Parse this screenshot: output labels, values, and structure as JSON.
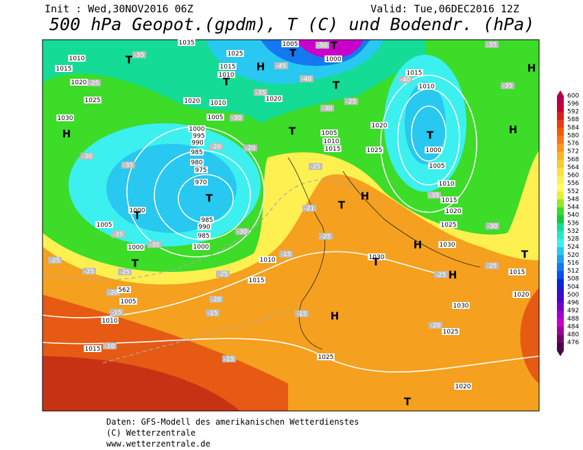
{
  "header": {
    "init": "Init : Wed,30NOV2016 06Z",
    "valid": "Valid: Tue,06DEC2016 12Z",
    "title": "500 hPa Geopot.(gpdm), T (C) und Bodendr. (hPa)"
  },
  "colorbar": {
    "values": [
      600,
      596,
      592,
      588,
      584,
      580,
      576,
      572,
      568,
      564,
      560,
      556,
      552,
      548,
      544,
      540,
      536,
      532,
      528,
      524,
      520,
      516,
      512,
      508,
      504,
      500,
      496,
      492,
      488,
      484,
      480,
      476
    ],
    "colors": [
      "#b4004b",
      "#c80032",
      "#dc1e1e",
      "#e63c14",
      "#f05a0a",
      "#f57814",
      "#f8961e",
      "#fab428",
      "#fcc832",
      "#fde03c",
      "#fef050",
      "#ffff64",
      "#e6f032",
      "#96e628",
      "#3cdc28",
      "#14c83c",
      "#14dc96",
      "#28e6c8",
      "#3cf0f0",
      "#28c8f0",
      "#1ea0f0",
      "#1478f0",
      "#0a50e6",
      "#0028dc",
      "#2814c8",
      "#5000c8",
      "#7800c8",
      "#a000c8",
      "#c800c8",
      "#a0009b",
      "#78006e",
      "#50004b"
    ]
  },
  "map": {
    "isobar_labels": [
      "1035",
      "1025",
      "1005",
      "1000",
      "1010",
      "1015",
      "1020",
      "1025",
      "1030",
      "1015",
      "1010",
      "1020",
      "1010",
      "1005",
      "1000",
      "995",
      "990",
      "985",
      "980",
      "975",
      "970",
      "985",
      "990",
      "985",
      "1000",
      "1000",
      "1005",
      "1000",
      "1020",
      "1005",
      "1010",
      "1015",
      "1020",
      "1025",
      "1015",
      "1010",
      "1000",
      "1005",
      "1010",
      "1015",
      "1020",
      "1025",
      "1030",
      "1030",
      "1010",
      "1015",
      "1005",
      "1010",
      "1015",
      "1025",
      "1030",
      "1025",
      "1020",
      "1020",
      "1015",
      "562"
    ],
    "temp_labels": [
      "-35",
      "-25",
      "-30",
      "-35",
      "-20",
      "-30",
      "-20",
      "-25",
      "-21",
      "-25",
      "-15",
      "-25",
      "-20",
      "-15",
      "-15",
      "-15",
      "-10",
      "-15",
      "-20",
      "-25",
      "-25",
      "-30",
      "-35",
      "-25",
      "-30",
      "-30",
      "-35",
      "-25",
      "-25",
      "-20",
      "-40",
      "-35",
      "-35",
      "-25",
      "-30",
      "-40",
      "-35",
      "-45",
      "-50"
    ],
    "centers": [
      "T",
      "H",
      "T",
      "T",
      "H",
      "T",
      "T",
      "H",
      "H",
      "T",
      "T",
      "T",
      "H",
      "T",
      "H",
      "T",
      "H",
      "T",
      "H",
      "T",
      "T",
      "T"
    ]
  },
  "footer": {
    "line1": "Daten: GFS-Modell des amerikanischen Wetterdienstes",
    "line2": "(C) Wetterzentrale",
    "line3": "www.wetterzentrale.de"
  }
}
